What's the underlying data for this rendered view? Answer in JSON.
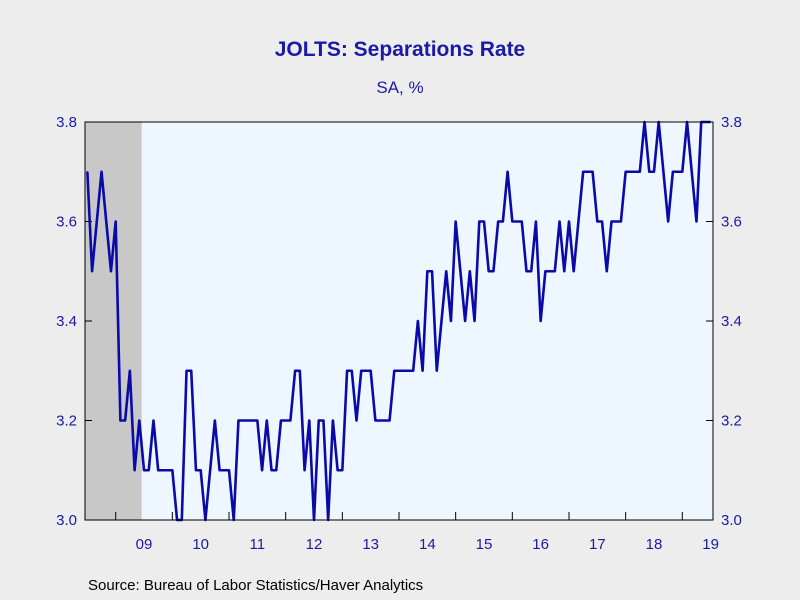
{
  "chart_data": {
    "type": "line",
    "title": "JOLTS: Separations Rate",
    "subtitle": "SA, %",
    "ylim": [
      3.0,
      3.8
    ],
    "y_ticks": [
      3.0,
      3.2,
      3.4,
      3.6,
      3.8
    ],
    "y_tick_labels": [
      "3.0",
      "3.2",
      "3.4",
      "3.6",
      "3.8"
    ],
    "x_tick_labels": [
      "09",
      "10",
      "11",
      "12",
      "13",
      "14",
      "15",
      "16",
      "17",
      "18",
      "19"
    ],
    "x_tick_years": [
      2009,
      2010,
      2011,
      2012,
      2013,
      2014,
      2015,
      2016,
      2017,
      2018,
      2019
    ],
    "x_start": "2008-07",
    "recession_shading": {
      "start": "2008-07",
      "end": "2009-06"
    },
    "grid": false,
    "colors": {
      "line": "#0a0aa8",
      "plot_background": "#eef6ff",
      "recession": "#c8c8c8",
      "text": "#1a1aa6"
    },
    "series": [
      {
        "values": [
          3.7,
          3.5,
          3.6,
          3.7,
          3.6,
          3.5,
          3.6,
          3.2,
          3.2,
          3.3,
          3.1,
          3.2,
          3.1,
          3.1,
          3.2,
          3.1,
          3.1,
          3.1,
          3.1,
          3.0,
          3.0,
          3.3,
          3.3,
          3.1,
          3.1,
          3.0,
          3.1,
          3.2,
          3.1,
          3.1,
          3.1,
          3.0,
          3.2,
          3.2,
          3.2,
          3.2,
          3.2,
          3.1,
          3.2,
          3.1,
          3.1,
          3.2,
          3.2,
          3.2,
          3.3,
          3.3,
          3.1,
          3.2,
          3.0,
          3.2,
          3.2,
          3.0,
          3.2,
          3.1,
          3.1,
          3.3,
          3.3,
          3.2,
          3.3,
          3.3,
          3.3,
          3.2,
          3.2,
          3.2,
          3.2,
          3.3,
          3.3,
          3.3,
          3.3,
          3.3,
          3.4,
          3.3,
          3.5,
          3.5,
          3.3,
          3.4,
          3.5,
          3.4,
          3.6,
          3.5,
          3.4,
          3.5,
          3.4,
          3.6,
          3.6,
          3.5,
          3.5,
          3.6,
          3.6,
          3.7,
          3.6,
          3.6,
          3.6,
          3.5,
          3.5,
          3.6,
          3.4,
          3.5,
          3.5,
          3.5,
          3.6,
          3.5,
          3.6,
          3.5,
          3.6,
          3.7,
          3.7,
          3.7,
          3.6,
          3.6,
          3.5,
          3.6,
          3.6,
          3.6,
          3.7,
          3.7,
          3.7,
          3.7,
          3.8,
          3.7,
          3.7,
          3.8,
          3.7,
          3.6,
          3.7,
          3.7,
          3.7,
          3.8,
          3.7,
          3.6,
          3.8,
          3.8,
          3.8
        ]
      }
    ]
  },
  "footer": {
    "source": "Source:  Bureau of Labor Statistics/Haver Analytics"
  }
}
